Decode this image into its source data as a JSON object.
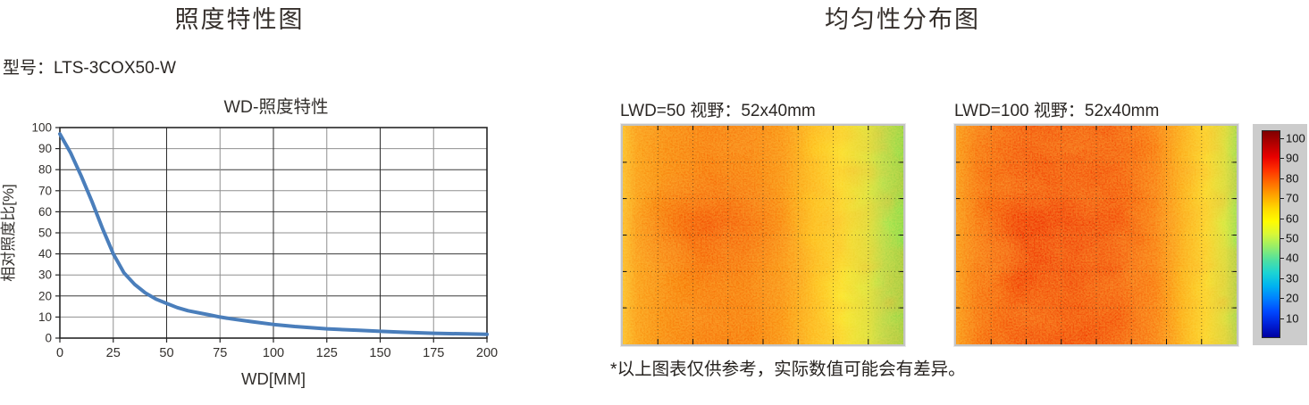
{
  "left_panel": {
    "title": "照度特性图",
    "model_label": "型号：LTS-3COX50-W"
  },
  "right_panel": {
    "title": "均匀性分布图",
    "note": "*以上图表仅供参考，实际数值可能会有差异。"
  },
  "chart_data": [
    {
      "type": "line",
      "title": "WD-照度特性",
      "xlabel": "WD[MM]",
      "ylabel": "相对照度比[%]",
      "xlim": [
        0,
        200
      ],
      "ylim": [
        0,
        100
      ],
      "xticks": [
        0,
        25,
        50,
        75,
        100,
        125,
        150,
        175,
        200
      ],
      "yticks": [
        0,
        10,
        20,
        30,
        40,
        50,
        60,
        70,
        80,
        90,
        100
      ],
      "grid": true,
      "line_color": "#4a7ebb",
      "points": [
        [
          0,
          97
        ],
        [
          5,
          88
        ],
        [
          10,
          77
        ],
        [
          15,
          65
        ],
        [
          20,
          52
        ],
        [
          25,
          40
        ],
        [
          30,
          31
        ],
        [
          35,
          25.5
        ],
        [
          40,
          21.5
        ],
        [
          45,
          18.5
        ],
        [
          50,
          16.5
        ],
        [
          55,
          14.5
        ],
        [
          60,
          13
        ],
        [
          70,
          11
        ],
        [
          75,
          10
        ],
        [
          80,
          9.2
        ],
        [
          90,
          7.8
        ],
        [
          100,
          6.5
        ],
        [
          110,
          5.5
        ],
        [
          120,
          4.8
        ],
        [
          125,
          4.4
        ],
        [
          140,
          3.7
        ],
        [
          150,
          3.2
        ],
        [
          160,
          2.8
        ],
        [
          175,
          2.3
        ],
        [
          190,
          2
        ],
        [
          200,
          1.8
        ]
      ]
    },
    {
      "type": "heatmap",
      "label": "LWD=50  视野：52x40mm",
      "value_range": [
        0,
        100
      ],
      "grid": true,
      "description": "hot orange-red zone center-left (~70-85) fading to yellow (~60-65) then green (~50-55) at the right edge",
      "core": {
        "x": "32%",
        "y": "46%",
        "color": "rgba(243,70,2,0.8)"
      },
      "gradient_stops": [
        "#fdc32c 0%",
        "#fb9a12 5%",
        "#f87d06 16%",
        "#f76c03 30%",
        "#f77105 45%",
        "#fa8b0c 57%",
        "#fec11a 68%",
        "#fbe62c 78%",
        "#d9ef3e 87%",
        "#a2ea52 93%",
        "#76e34c 100%"
      ]
    },
    {
      "type": "heatmap",
      "label": "LWD=100  视野：52x40mm",
      "value_range": [
        0,
        100
      ],
      "grid": true,
      "description": "mostly red (~80-90) across the left two thirds, turning orange then yellow near the right, narrow green strip at right edge",
      "core": {
        "x": "38%",
        "y": "52%",
        "color": "rgba(238,40,0,0.8)"
      },
      "gradient_stops": [
        "#fa9212 0%",
        "#f65f05 8%",
        "#f23d01 22%",
        "#f13a01 42%",
        "#f34403 58%",
        "#f96e0a 71%",
        "#fcab14 80%",
        "#fce02a 89%",
        "#cdee42 96%",
        "#8ce756 100%"
      ]
    },
    {
      "type": "colorbar",
      "colormap": "jet",
      "ticks": [
        100,
        90,
        80,
        70,
        60,
        50,
        40,
        30,
        20,
        10
      ],
      "range": [
        0,
        104
      ],
      "colors_top_to_bottom": [
        "#7f0000",
        "#b40000",
        "#e80000",
        "#ff3000",
        "#ff6c00",
        "#ffa400",
        "#ffd800",
        "#fffc00",
        "#d8f838",
        "#96ee6a",
        "#50e0a0",
        "#1cd4d4",
        "#00b4f0",
        "#0080ff",
        "#0048ff",
        "#0020d8",
        "#0000a0"
      ]
    }
  ]
}
